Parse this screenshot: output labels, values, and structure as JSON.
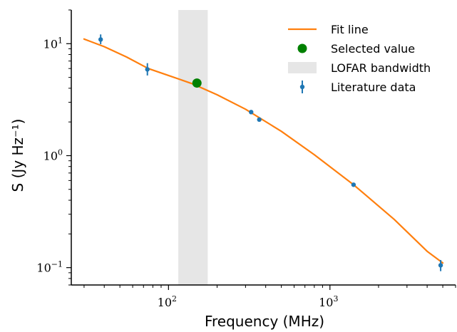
{
  "chart_data": {
    "type": "scatter",
    "title": "",
    "xlabel": "Frequency (MHz)",
    "ylabel": "S (Jy Hz⁻¹)",
    "xscale": "log",
    "yscale": "log",
    "xlim": [
      25,
      6000
    ],
    "ylim": [
      0.07,
      20
    ],
    "x_ticks": [
      {
        "value": 100,
        "base": "10",
        "exp": "2"
      },
      {
        "value": 1000,
        "base": "10",
        "exp": "3"
      }
    ],
    "y_ticks": [
      {
        "value": 0.1,
        "base": "10",
        "exp": "−1"
      },
      {
        "value": 1,
        "base": "10",
        "exp": "0"
      },
      {
        "value": 10,
        "base": "10",
        "exp": "1"
      }
    ],
    "grid": false,
    "legend_position": "top-right",
    "colors": {
      "fit": "#ff7f0e",
      "selected": "#008000",
      "band": "#e6e6e6",
      "data": "#1f77b4",
      "axis": "#000000"
    },
    "band": {
      "name": "LOFAR bandwidth",
      "x_range": [
        115,
        175
      ]
    },
    "series": [
      {
        "name": "Fit line",
        "type": "line",
        "x": [
          30,
          40,
          55,
          75,
          100,
          140,
          200,
          300,
          500,
          800,
          1400,
          2500,
          4000,
          5000
        ],
        "y": [
          11.0,
          9.4,
          7.6,
          6.0,
          5.2,
          4.4,
          3.5,
          2.6,
          1.65,
          1.02,
          0.55,
          0.27,
          0.14,
          0.11
        ]
      },
      {
        "name": "Selected value",
        "type": "marker",
        "x": [
          150
        ],
        "y": [
          4.45
        ]
      },
      {
        "name": "Literature data",
        "type": "errorbar",
        "x": [
          38,
          74,
          325,
          365,
          1400,
          4850
        ],
        "y": [
          10.9,
          5.9,
          2.45,
          2.1,
          0.55,
          0.105
        ],
        "yerr_lo": [
          1.0,
          0.7,
          0.1,
          0.08,
          0.02,
          0.012
        ],
        "yerr_hi": [
          1.2,
          0.8,
          0.1,
          0.08,
          0.02,
          0.012
        ]
      }
    ]
  }
}
